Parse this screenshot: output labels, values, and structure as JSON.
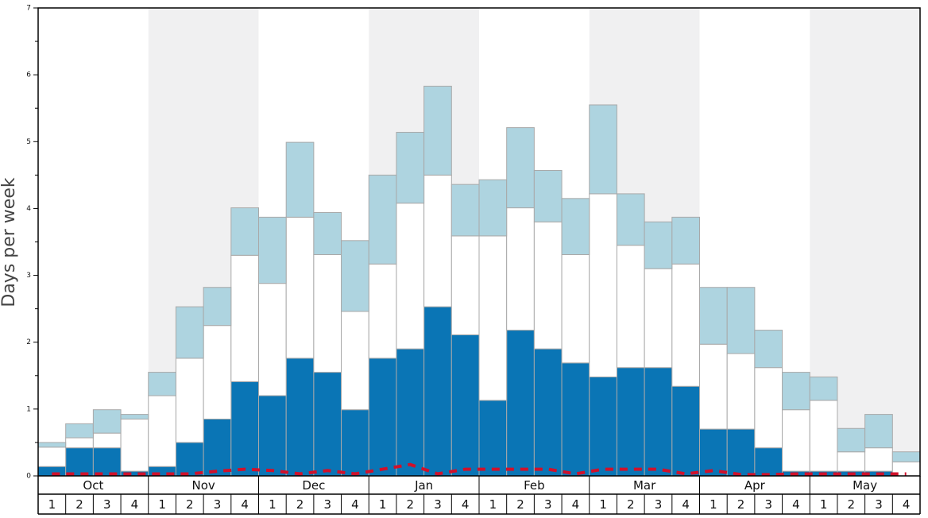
{
  "chart_data": {
    "type": "bar",
    "stacked": true,
    "y_label": "Days per week",
    "months": [
      "Oct",
      "Nov",
      "Dec",
      "Jan",
      "Feb",
      "Mar",
      "Apr",
      "May"
    ],
    "categories": [
      "1",
      "2",
      "3",
      "4",
      "1",
      "2",
      "3",
      "4",
      "1",
      "2",
      "3",
      "4",
      "1",
      "2",
      "3",
      "4",
      "1",
      "2",
      "3",
      "4",
      "1",
      "2",
      "3",
      "4",
      "1",
      "2",
      "3",
      "4",
      "1",
      "2",
      "3",
      "4"
    ],
    "series": [
      {
        "color": "#0a75b5",
        "values": [
          0.14,
          0.42,
          0.42,
          0.07,
          0.14,
          0.5,
          0.85,
          1.41,
          1.2,
          1.76,
          1.55,
          0.99,
          1.76,
          1.9,
          2.53,
          2.11,
          1.13,
          2.18,
          1.9,
          1.69,
          1.48,
          1.62,
          1.62,
          1.34,
          0.7,
          0.7,
          0.42,
          0.07,
          0.07,
          0.07,
          0.07,
          0
        ]
      },
      {
        "color": "#ffffff",
        "values": [
          0.29,
          0.15,
          0.22,
          0.78,
          1.06,
          1.26,
          1.4,
          1.89,
          1.68,
          2.11,
          1.76,
          1.47,
          1.41,
          2.18,
          1.97,
          1.48,
          2.46,
          1.83,
          1.9,
          1.62,
          2.74,
          1.83,
          1.48,
          1.83,
          1.27,
          1.13,
          1.2,
          0.92,
          1.06,
          0.29,
          0.35,
          0.21
        ]
      },
      {
        "color": "#aed4e0",
        "values": [
          0.07,
          0.21,
          0.35,
          0.07,
          0.35,
          0.77,
          0.57,
          0.71,
          0.99,
          1.12,
          0.63,
          1.06,
          1.33,
          1.06,
          1.33,
          0.77,
          0.84,
          1.2,
          0.77,
          0.84,
          1.33,
          0.77,
          0.7,
          0.7,
          0.85,
          0.99,
          0.56,
          0.56,
          0.35,
          0.35,
          0.5,
          0.15
        ]
      },
      {
        "type": "line",
        "color": "#d0112b",
        "values": [
          0.03,
          0.03,
          0.03,
          0.03,
          0.03,
          0.03,
          0.07,
          0.1,
          0.08,
          0.03,
          0.08,
          0.03,
          0.1,
          0.17,
          0.03,
          0.1,
          0.1,
          0.1,
          0.1,
          0.03,
          0.1,
          0.1,
          0.1,
          0.03,
          0.08,
          0.02,
          0.02,
          0.03,
          0.03,
          0.03,
          0.03,
          0.03
        ]
      }
    ],
    "ylim": [
      0,
      7
    ],
    "yticks": [
      0,
      1,
      2,
      3,
      4,
      5,
      6,
      7
    ],
    "yminorticks": [
      0.5,
      1.5,
      2.5,
      3.5,
      4.5,
      5.5,
      6.5
    ]
  }
}
